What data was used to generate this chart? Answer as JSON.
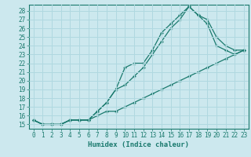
{
  "xlabel": "Humidex (Indice chaleur)",
  "bg_color": "#cce8ee",
  "grid_color": "#b0d8e0",
  "line_color": "#1a7a6e",
  "marker": "+",
  "xlim": [
    -0.5,
    23.5
  ],
  "ylim": [
    14.5,
    28.7
  ],
  "xticks": [
    0,
    1,
    2,
    3,
    4,
    5,
    6,
    7,
    8,
    9,
    10,
    11,
    12,
    13,
    14,
    15,
    16,
    17,
    18,
    19,
    20,
    21,
    22,
    23
  ],
  "yticks": [
    15,
    16,
    17,
    18,
    19,
    20,
    21,
    22,
    23,
    24,
    25,
    26,
    27,
    28
  ],
  "line1_x": [
    0,
    1,
    2,
    3,
    4,
    5,
    6,
    7,
    8,
    9,
    10,
    11,
    12,
    13,
    14,
    15,
    16,
    17,
    18,
    19,
    20,
    21,
    22,
    23
  ],
  "line1_y": [
    15.5,
    15.0,
    15.0,
    15.0,
    15.5,
    15.5,
    15.5,
    16.5,
    17.5,
    19.0,
    21.5,
    22.0,
    22.0,
    23.5,
    25.5,
    26.5,
    27.5,
    28.5,
    27.5,
    27.0,
    25.0,
    24.0,
    23.5,
    23.5
  ],
  "line2_x": [
    0,
    1,
    2,
    3,
    4,
    5,
    6,
    7,
    8,
    9,
    10,
    11,
    12,
    13,
    14,
    15,
    16,
    17,
    18,
    19,
    20,
    21,
    22,
    23
  ],
  "line2_y": [
    15.5,
    15.0,
    15.0,
    15.0,
    15.5,
    15.5,
    15.5,
    16.5,
    17.5,
    19.0,
    19.5,
    20.5,
    21.5,
    23.0,
    24.5,
    26.0,
    27.0,
    28.5,
    27.5,
    26.5,
    24.0,
    23.5,
    23.0,
    23.5
  ],
  "line3_x": [
    0,
    1,
    2,
    3,
    4,
    5,
    6,
    7,
    8,
    9,
    10,
    11,
    12,
    13,
    14,
    15,
    16,
    17,
    18,
    19,
    20,
    21,
    22,
    23
  ],
  "line3_y": [
    15.5,
    15.0,
    15.0,
    15.0,
    15.5,
    15.5,
    15.5,
    16.0,
    16.5,
    16.5,
    17.0,
    17.5,
    18.0,
    18.5,
    19.0,
    19.5,
    20.0,
    20.5,
    21.0,
    21.5,
    22.0,
    22.5,
    23.0,
    23.5
  ],
  "tick_fontsize": 5.5,
  "xlabel_fontsize": 6.5
}
